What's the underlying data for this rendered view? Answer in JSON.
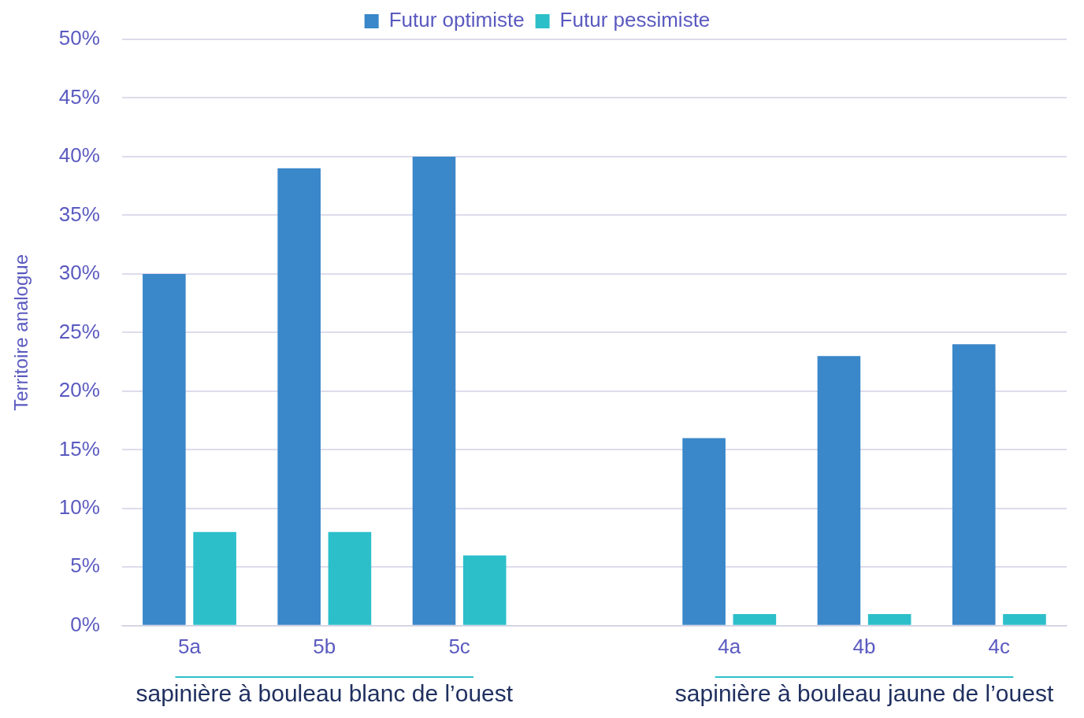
{
  "chart_data": {
    "type": "bar",
    "ylabel": "Territoire analogue",
    "categories": [
      "5a",
      "5b",
      "5c",
      null,
      "4a",
      "4b",
      "4c"
    ],
    "series": [
      {
        "name": "Futur optimiste",
        "color": "#3a87c9",
        "values": [
          30,
          39,
          40,
          null,
          16,
          23,
          24
        ]
      },
      {
        "name": "Futur pessimiste",
        "color": "#2cbfca",
        "values": [
          8,
          8,
          6,
          null,
          1,
          1,
          1
        ]
      }
    ],
    "ylim": [
      0,
      50
    ],
    "yticks": [
      {
        "value": 0,
        "label": "0%"
      },
      {
        "value": 5,
        "label": "5%"
      },
      {
        "value": 10,
        "label": "10%"
      },
      {
        "value": 15,
        "label": "15%"
      },
      {
        "value": 20,
        "label": "20%"
      },
      {
        "value": 25,
        "label": "25%"
      },
      {
        "value": 30,
        "label": "30%"
      },
      {
        "value": 35,
        "label": "35%"
      },
      {
        "value": 40,
        "label": "40%"
      },
      {
        "value": 45,
        "label": "45%"
      },
      {
        "value": 50,
        "label": "50%"
      }
    ],
    "grid": "y",
    "legend": "top",
    "annotations": [
      "sapinière à bouleau blanc de l’ouest",
      "sapinière à bouleau jaune de l’ouest"
    ]
  }
}
